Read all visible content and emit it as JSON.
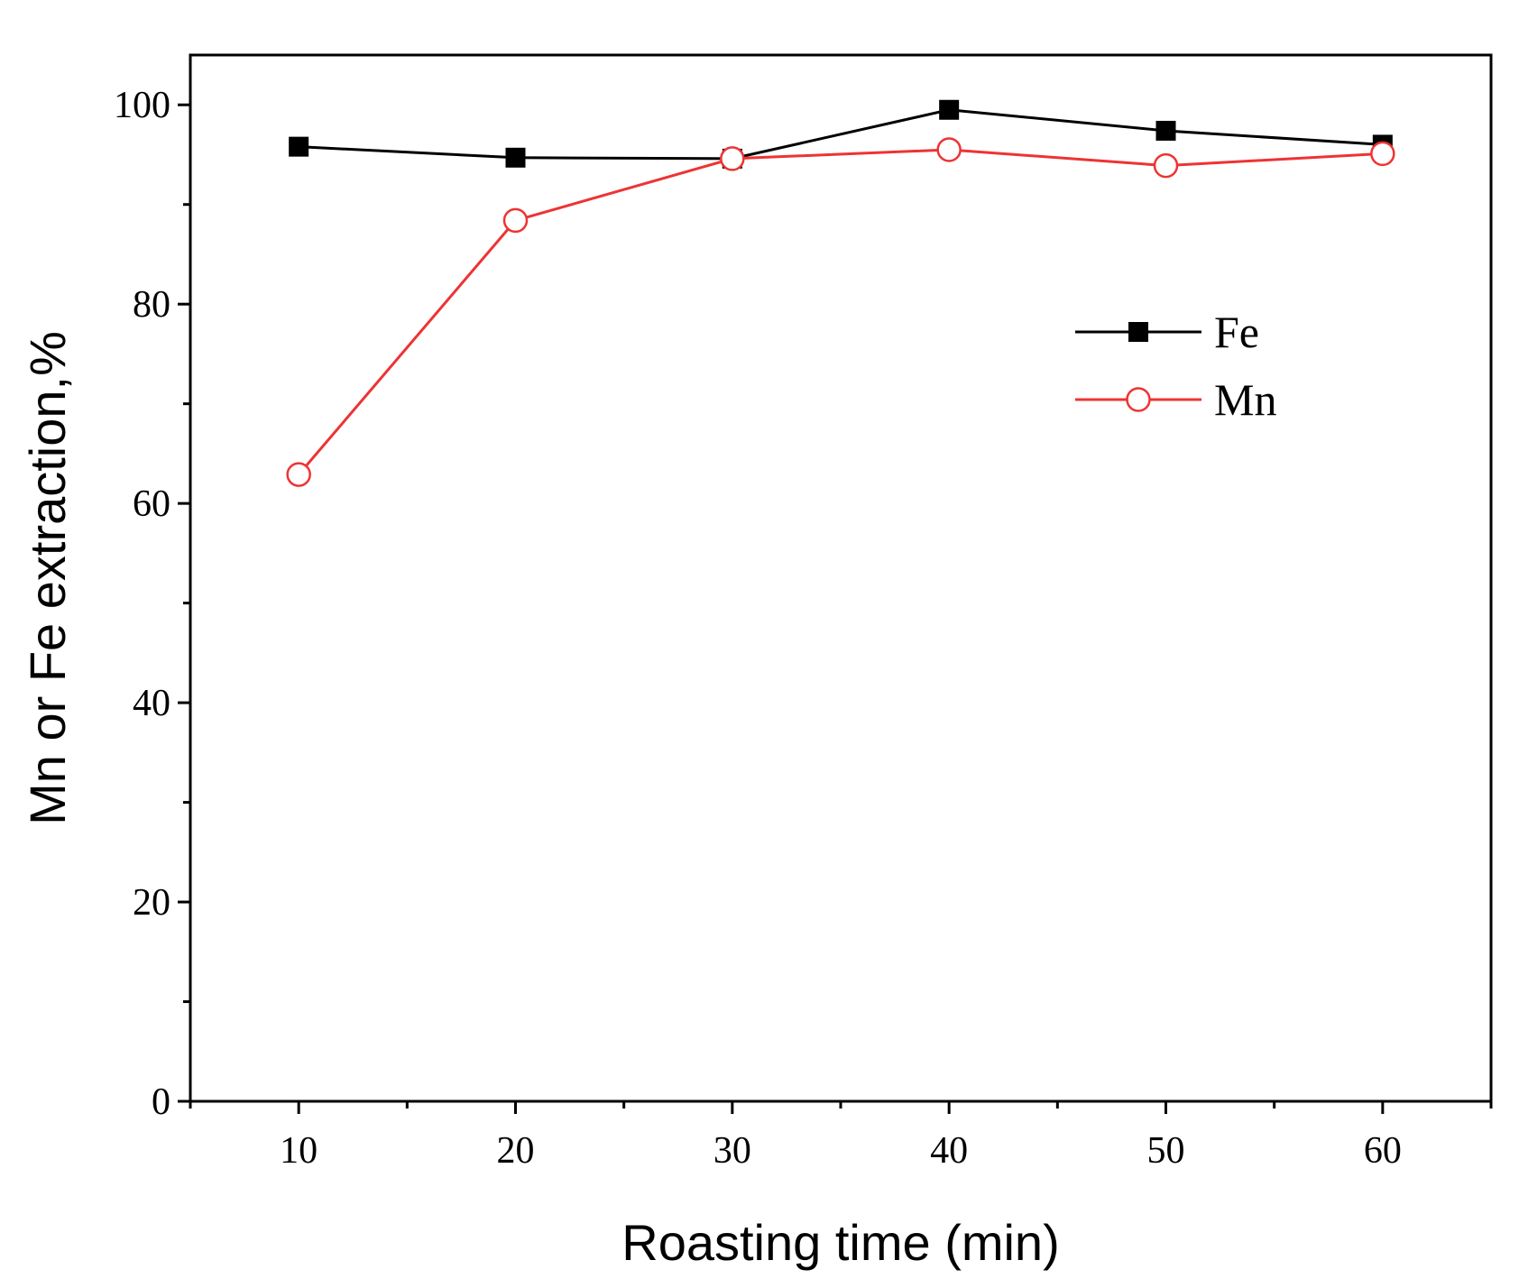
{
  "chart_data": {
    "type": "line",
    "title": "",
    "xlabel": "Roasting time (min)",
    "ylabel": "Mn or Fe extraction,%",
    "x": [
      10,
      20,
      30,
      40,
      50,
      60
    ],
    "xticks": [
      10,
      20,
      30,
      40,
      50,
      60
    ],
    "yticks": [
      0,
      20,
      40,
      60,
      80,
      100
    ],
    "xlim": [
      5,
      65
    ],
    "ylim": [
      0,
      105
    ],
    "legend_position": "upper-right",
    "series": [
      {
        "name": "Fe",
        "color": "#000000",
        "marker": "filled-square",
        "values": [
          95.8,
          94.7,
          94.6,
          99.5,
          97.4,
          96.0
        ]
      },
      {
        "name": "Mn",
        "color": "#ee3333",
        "marker": "open-circle",
        "values": [
          62.9,
          88.4,
          94.6,
          95.5,
          93.9,
          95.1
        ]
      }
    ]
  }
}
